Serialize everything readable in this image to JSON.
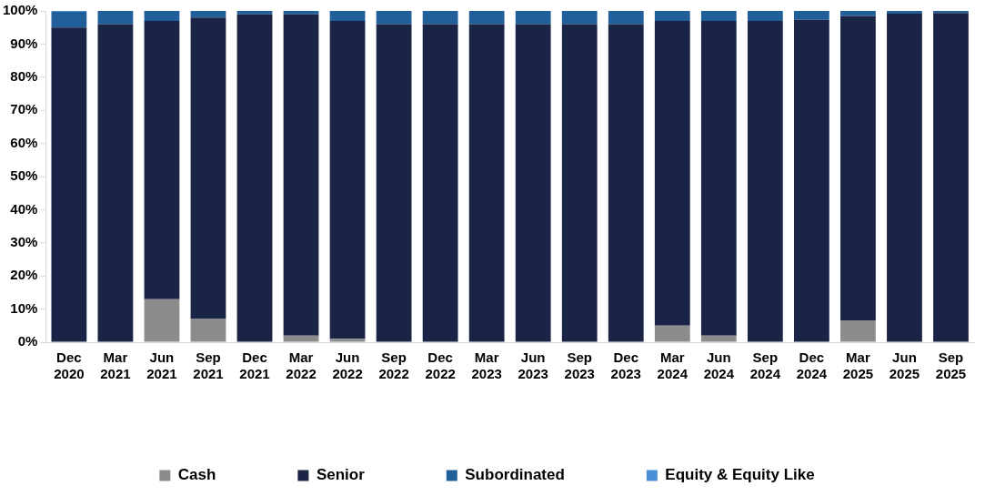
{
  "chart_data": {
    "type": "bar",
    "stacked": true,
    "categories": [
      "Dec 2020",
      "Mar 2021",
      "Jun 2021",
      "Sep 2021",
      "Dec 2021",
      "Mar 2022",
      "Jun 2022",
      "Sep 2022",
      "Dec 2022",
      "Mar 2023",
      "Jun 2023",
      "Sep 2023",
      "Dec 2023",
      "Mar 2024",
      "Jun 2024",
      "Sep 2024",
      "Dec 2024",
      "Mar 2025",
      "Jun 2025",
      "Sep 2025"
    ],
    "series": [
      {
        "name": "Cash",
        "color": "#8c8c8c",
        "values": [
          0,
          0,
          13,
          7,
          0,
          2,
          1,
          0,
          0,
          0,
          0,
          0,
          0,
          5,
          2,
          0,
          0,
          6.6,
          0,
          0
        ]
      },
      {
        "name": "Senior",
        "color": "#1a2446",
        "values": [
          95,
          96,
          84,
          91,
          99,
          97,
          96,
          96,
          96,
          96,
          96,
          96,
          96,
          92,
          95,
          97,
          97.3,
          91.9,
          99.2,
          99.4
        ]
      },
      {
        "name": "Subordinated",
        "color": "#215f9a",
        "values": [
          4.7,
          4,
          3,
          2,
          1,
          1,
          3,
          4,
          4,
          4,
          4,
          4,
          4,
          3,
          3,
          3,
          2.7,
          1.5,
          0.8,
          0.6
        ]
      },
      {
        "name": "Equity & Equity Like",
        "color": "#4a90d9",
        "values": [
          0.3,
          0,
          0,
          0,
          0,
          0,
          0,
          0,
          0,
          0,
          0,
          0,
          0,
          0,
          0,
          0,
          0,
          0,
          0,
          0
        ]
      }
    ],
    "ylim": [
      0,
      100
    ],
    "yticks": [
      {
        "value": 0,
        "label": "0%"
      },
      {
        "value": 10,
        "label": "10%"
      },
      {
        "value": 20,
        "label": "20%"
      },
      {
        "value": 30,
        "label": "30%"
      },
      {
        "value": 40,
        "label": "40%"
      },
      {
        "value": 50,
        "label": "50%"
      },
      {
        "value": 60,
        "label": "60%"
      },
      {
        "value": 70,
        "label": "70%"
      },
      {
        "value": 80,
        "label": "80%"
      },
      {
        "value": 90,
        "label": "90%"
      },
      {
        "value": 100,
        "label": "100%"
      }
    ],
    "grid": false,
    "legend": "bottom"
  }
}
